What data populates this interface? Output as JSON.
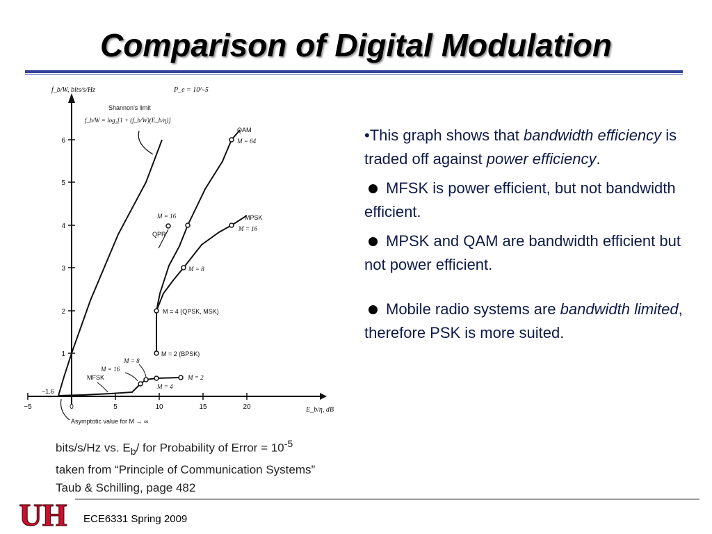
{
  "slide": {
    "title": "Comparison of Digital Modulation",
    "footer": "ECE6331 Spring 2009"
  },
  "graph": {
    "ylabel": "f_b/W, bits/s/Hz",
    "pe_label": "P_e = 10^-5",
    "xlabel": "E_b/η, dB",
    "shannon_label": "Shannon's limit",
    "shannon_formula": "f_b/W = log₂[1 + (f_b/W)(E_b/η)]",
    "asymptote_label": "Asymptotic value for M → ∞",
    "asymptote_value": "−1.6",
    "x_ticks": [
      "−5",
      "0",
      "5",
      "10",
      "15",
      "20"
    ],
    "y_ticks": [
      "1",
      "2",
      "3",
      "4",
      "5",
      "6"
    ],
    "labels": {
      "qam": "QAM",
      "qam_m64": "M = 64",
      "qam_m16": "M = 16",
      "qpr": "QPR",
      "mpsk": "MPSK",
      "mpsk_m16": "M = 16",
      "mpsk_m8": "M = 8",
      "m4": "M = 4 (QPSK, MSK)",
      "m2": "M = 2 (BPSK)",
      "mfsk": "MFSK",
      "mfsk_m16": "M = 16",
      "mfsk_m8": "M = 8",
      "mfsk_m4": "M = 4",
      "mfsk_m2": "M = 2"
    }
  },
  "caption": {
    "line1_a": "bits/s/Hz vs. E",
    "line1_sub": "b",
    "line1_b": "/    for Probability of Error = 10",
    "line1_sup": "-5",
    "line2": "taken from “Principle of Communication Systems”",
    "line3": "Taub & Schilling, page 482"
  },
  "bullets": {
    "b1_p1": "•This graph shows that ",
    "b1_em1": "bandwidth efficiency",
    "b1_p2": " is traded off against ",
    "b1_em2": "power efficiency",
    "b1_p3": ".",
    "b2": "MFSK is power efficient, but not bandwidth efficient.",
    "b3": "MPSK and QAM are bandwidth efficient but not power efficient.",
    "b4_p1": "Mobile radio systems are ",
    "b4_em": "bandwidth limited",
    "b4_p2": ", therefore PSK is more suited."
  },
  "logo_text": "UH",
  "colors": {
    "title_rule": "#34449a",
    "bullet_text": "#0e1a4a",
    "logo_red": "#c8102e"
  }
}
